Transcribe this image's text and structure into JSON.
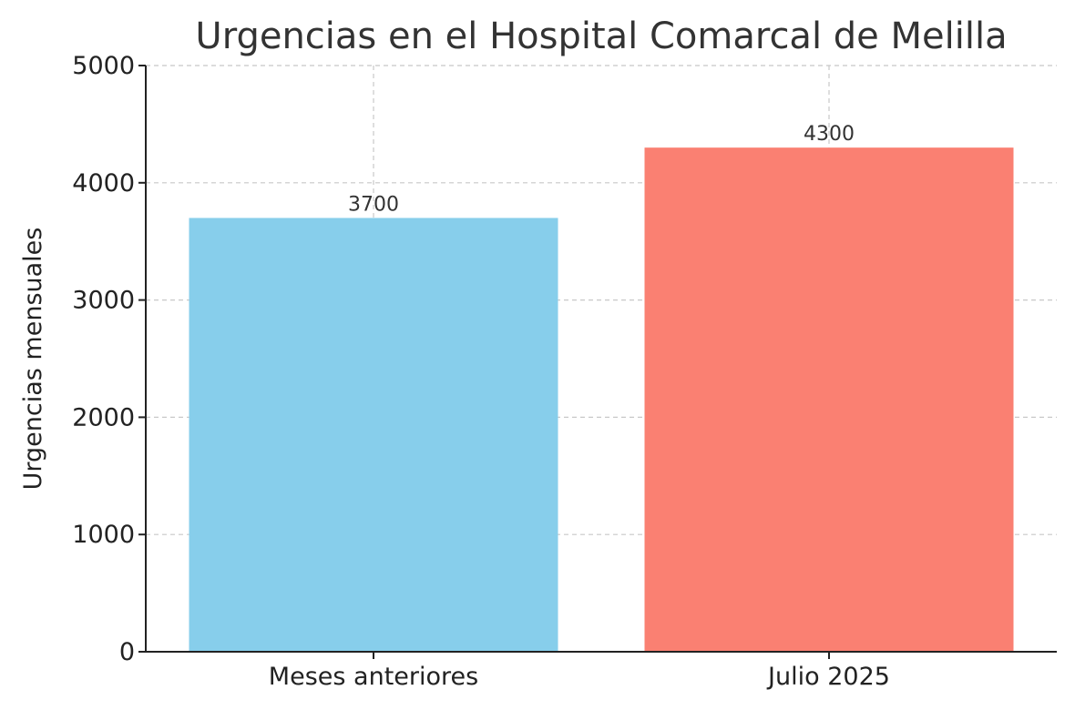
{
  "chart_data": {
    "type": "bar",
    "title": "Urgencias en el Hospital Comarcal de Melilla",
    "xlabel": "",
    "ylabel": "Urgencias mensuales",
    "categories": [
      "Meses anteriores",
      "Julio 2025"
    ],
    "values": [
      3700,
      4300
    ],
    "data_labels": [
      "3700",
      "4300"
    ],
    "colors": [
      "#87CEEB",
      "#FA8072"
    ],
    "ylim": [
      0,
      5000
    ],
    "yticks": [
      0,
      1000,
      2000,
      3000,
      4000,
      5000
    ],
    "ytick_labels": [
      "0",
      "1000",
      "2000",
      "3000",
      "4000",
      "5000"
    ],
    "grid": true
  }
}
